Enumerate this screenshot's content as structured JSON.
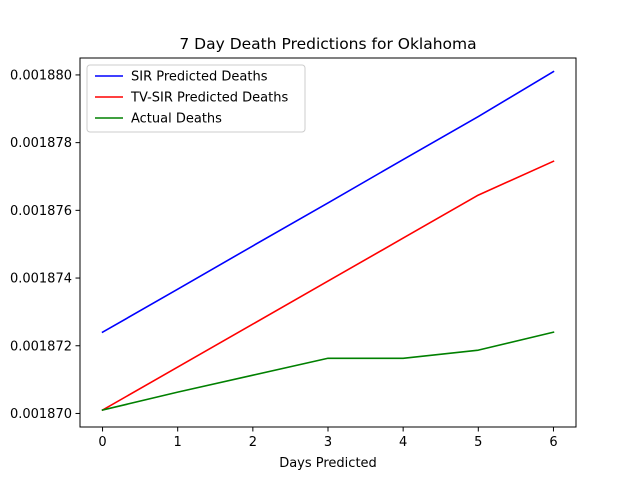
{
  "chart_data": {
    "type": "line",
    "title": "7 Day Death Predictions for Oklahoma",
    "xlabel": "Days Predicted",
    "ylabel": "",
    "x": [
      0,
      1,
      2,
      3,
      4,
      5,
      6
    ],
    "x_ticks": [
      "0",
      "1",
      "2",
      "3",
      "4",
      "5",
      "6"
    ],
    "xlim": [
      -0.3,
      6.3
    ],
    "y_ticks": [
      0.00187,
      0.001872,
      0.001874,
      0.001876,
      0.001878,
      0.00188
    ],
    "y_tick_labels": [
      "0.001870",
      "0.001872",
      "0.001874",
      "0.001876",
      "0.001878",
      "0.001880"
    ],
    "ylim": [
      0.0018696,
      0.0018805
    ],
    "grid": false,
    "legend_position": "top-left",
    "series": [
      {
        "name": "SIR Predicted Deaths",
        "color": "#0000ff",
        "values": [
          0.0018724,
          0.00187367,
          0.00187495,
          0.00187622,
          0.0018775,
          0.00187877,
          0.0018801
        ]
      },
      {
        "name": "TV-SIR Predicted Deaths",
        "color": "#ff0000",
        "values": [
          0.0018701,
          0.00187137,
          0.00187264,
          0.00187391,
          0.00187518,
          0.00187645,
          0.00187745
        ]
      },
      {
        "name": "Actual Deaths",
        "color": "#008000",
        "values": [
          0.0018701,
          0.00187063,
          0.00187113,
          0.00187163,
          0.00187163,
          0.00187187,
          0.0018724
        ]
      }
    ]
  }
}
